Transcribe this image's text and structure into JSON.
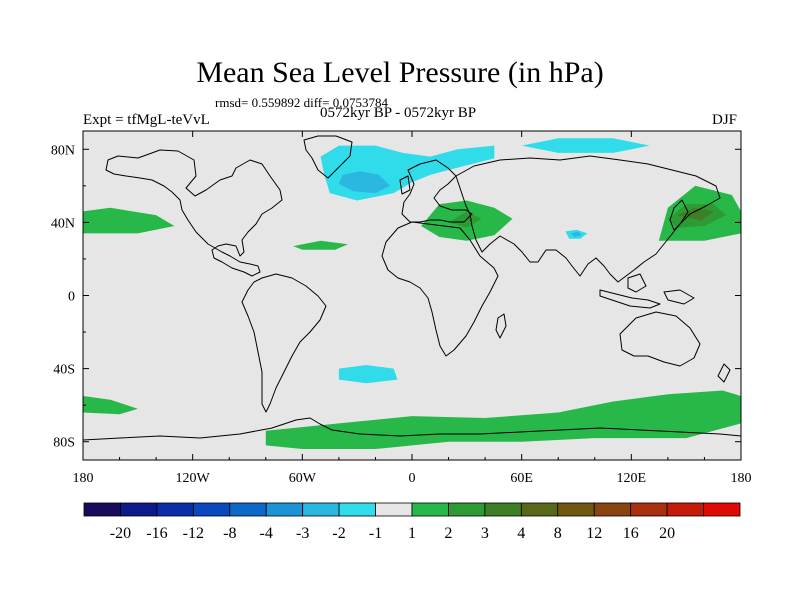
{
  "title": "Mean Sea Level Pressure (in hPa)",
  "stats": "rmsd= 0.559892 diff= 0.0753784",
  "experiment": "Expt = tfMgL-teVvL",
  "period": "0572kyr BP - 0572kyr BP",
  "season": "DJF",
  "map": {
    "background_color": "#e6e6e6",
    "lon_range": [
      -180,
      180
    ],
    "lat_range": [
      -90,
      90
    ],
    "x_ticks": [
      {
        "lon": -180,
        "label": "180"
      },
      {
        "lon": -120,
        "label": "120W"
      },
      {
        "lon": -60,
        "label": "60W"
      },
      {
        "lon": 0,
        "label": "0"
      },
      {
        "lon": 60,
        "label": "60E"
      },
      {
        "lon": 120,
        "label": "120E"
      },
      {
        "lon": 180,
        "label": "180"
      }
    ],
    "y_ticks": [
      {
        "lat": 80,
        "label": "80N"
      },
      {
        "lat": 40,
        "label": "40N"
      },
      {
        "lat": 0,
        "label": "0"
      },
      {
        "lat": -40,
        "label": "40S"
      },
      {
        "lat": -80,
        "label": "80S"
      }
    ]
  },
  "colorbar": {
    "colors": [
      "#1a0a5c",
      "#0c1a8a",
      "#0a2ea8",
      "#0a48c0",
      "#0e68c8",
      "#1a94d4",
      "#2ab8e0",
      "#30dcea",
      "#e6e6e6",
      "#28b84a",
      "#2e9a34",
      "#3e7e24",
      "#586818",
      "#6e5812",
      "#8a4410",
      "#a8300c",
      "#c41c08",
      "#e00a04"
    ],
    "labels": [
      "-20",
      "-16",
      "-12",
      "-8",
      "-4",
      "-3",
      "-2",
      "-1",
      "1",
      "2",
      "3",
      "4",
      "8",
      "12",
      "16",
      "20"
    ]
  },
  "anomalies": [
    {
      "name": "north-atlantic-low",
      "level": "-2",
      "color": "#30dcea",
      "points": [
        [
          -50,
          76
        ],
        [
          -40,
          82
        ],
        [
          -20,
          82
        ],
        [
          -5,
          78
        ],
        [
          10,
          76
        ],
        [
          25,
          80
        ],
        [
          45,
          82
        ],
        [
          45,
          75
        ],
        [
          25,
          70
        ],
        [
          10,
          66
        ],
        [
          0,
          62
        ],
        [
          -10,
          56
        ],
        [
          -30,
          52
        ],
        [
          -45,
          56
        ],
        [
          -48,
          66
        ]
      ]
    },
    {
      "name": "north-atlantic-low-core",
      "level": "-3",
      "color": "#2ab8e0",
      "points": [
        [
          -38,
          66
        ],
        [
          -28,
          68
        ],
        [
          -18,
          66
        ],
        [
          -12,
          60
        ],
        [
          -20,
          56
        ],
        [
          -32,
          57
        ],
        [
          -40,
          61
        ]
      ]
    },
    {
      "name": "arctic-low",
      "level": "-2",
      "color": "#30dcea",
      "points": [
        [
          60,
          82
        ],
        [
          80,
          86
        ],
        [
          110,
          86
        ],
        [
          130,
          82
        ],
        [
          110,
          78
        ],
        [
          80,
          78
        ]
      ]
    },
    {
      "name": "tibet-low",
      "level": "-2",
      "color": "#30dcea",
      "points": [
        [
          84,
          35
        ],
        [
          90,
          36
        ],
        [
          96,
          34
        ],
        [
          92,
          31
        ],
        [
          86,
          31
        ]
      ]
    },
    {
      "name": "tibet-low-core",
      "level": "-3",
      "color": "#2ab8e0",
      "points": [
        [
          87,
          34
        ],
        [
          91,
          35
        ],
        [
          93,
          33
        ],
        [
          89,
          32
        ]
      ]
    },
    {
      "name": "mediterranean-high",
      "level": "2",
      "color": "#28b84a",
      "points": [
        [
          5,
          38
        ],
        [
          15,
          50
        ],
        [
          30,
          52
        ],
        [
          45,
          48
        ],
        [
          55,
          42
        ],
        [
          45,
          33
        ],
        [
          30,
          30
        ],
        [
          15,
          32
        ]
      ]
    },
    {
      "name": "mediterranean-high-core",
      "level": "3",
      "color": "#2e9a34",
      "points": [
        [
          20,
          40
        ],
        [
          30,
          46
        ],
        [
          38,
          42
        ],
        [
          30,
          37
        ]
      ]
    },
    {
      "name": "north-pacific-high-west",
      "level": "2",
      "color": "#28b84a",
      "points": [
        [
          135,
          30
        ],
        [
          140,
          48
        ],
        [
          155,
          60
        ],
        [
          175,
          55
        ],
        [
          180,
          46
        ],
        [
          180,
          34
        ],
        [
          160,
          30
        ]
      ]
    },
    {
      "name": "north-pacific-high-core",
      "level": "3",
      "color": "#2e9a34",
      "points": [
        [
          140,
          42
        ],
        [
          150,
          50
        ],
        [
          165,
          50
        ],
        [
          172,
          44
        ],
        [
          160,
          38
        ],
        [
          145,
          37
        ]
      ]
    },
    {
      "name": "north-pacific-high-peak",
      "level": "4",
      "color": "#3e7e24",
      "points": [
        [
          145,
          44
        ],
        [
          155,
          48
        ],
        [
          165,
          46
        ],
        [
          158,
          41
        ]
      ]
    },
    {
      "name": "north-pacific-high-east",
      "level": "2",
      "color": "#28b84a",
      "points": [
        [
          -180,
          34
        ],
        [
          -180,
          46
        ],
        [
          -165,
          48
        ],
        [
          -140,
          44
        ],
        [
          -130,
          38
        ],
        [
          -150,
          34
        ]
      ]
    },
    {
      "name": "atlantic-high",
      "level": "2",
      "color": "#28b84a",
      "points": [
        [
          -65,
          27
        ],
        [
          -50,
          30
        ],
        [
          -35,
          28
        ],
        [
          -42,
          25
        ],
        [
          -60,
          25
        ]
      ]
    },
    {
      "name": "south-atlantic-low",
      "level": "-2",
      "color": "#30dcea",
      "points": [
        [
          -40,
          -40
        ],
        [
          -25,
          -38
        ],
        [
          -10,
          -40
        ],
        [
          -8,
          -46
        ],
        [
          -25,
          -48
        ],
        [
          -40,
          -46
        ]
      ]
    },
    {
      "name": "southern-ocean-west",
      "level": "2",
      "color": "#28b84a",
      "points": [
        [
          -180,
          -55
        ],
        [
          -165,
          -57
        ],
        [
          -150,
          -62
        ],
        [
          -160,
          -65
        ],
        [
          -180,
          -64
        ]
      ]
    },
    {
      "name": "antarctic-high",
      "level": "2",
      "color": "#28b84a",
      "points": [
        [
          -80,
          -74
        ],
        [
          -40,
          -70
        ],
        [
          0,
          -66
        ],
        [
          40,
          -67
        ],
        [
          80,
          -64
        ],
        [
          110,
          -58
        ],
        [
          140,
          -54
        ],
        [
          170,
          -52
        ],
        [
          180,
          -55
        ],
        [
          180,
          -70
        ],
        [
          150,
          -78
        ],
        [
          100,
          -78
        ],
        [
          60,
          -80
        ],
        [
          20,
          -80
        ],
        [
          -20,
          -84
        ],
        [
          -60,
          -84
        ],
        [
          -80,
          -82
        ]
      ]
    }
  ]
}
